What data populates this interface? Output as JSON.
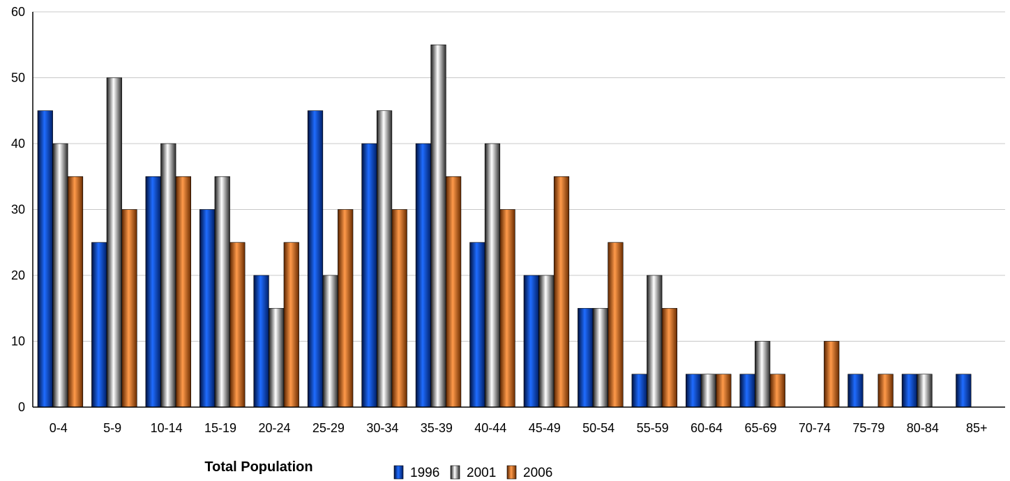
{
  "chart_data": {
    "type": "bar",
    "title": "Total Population",
    "xlabel": "",
    "ylabel": "",
    "categories": [
      "0-4",
      "5-9",
      "10-14",
      "15-19",
      "20-24",
      "25-29",
      "30-34",
      "35-39",
      "40-44",
      "45-49",
      "50-54",
      "55-59",
      "60-64",
      "65-69",
      "70-74",
      "75-79",
      "80-84",
      "85+"
    ],
    "series": [
      {
        "name": "1996",
        "color": "#0047c8",
        "values": [
          45,
          25,
          35,
          30,
          20,
          45,
          40,
          40,
          25,
          20,
          15,
          5,
          5,
          5,
          0,
          5,
          5,
          5
        ]
      },
      {
        "name": "2001",
        "color": "#9a9a9a",
        "values": [
          40,
          50,
          40,
          35,
          15,
          20,
          45,
          55,
          40,
          20,
          15,
          20,
          5,
          10,
          0,
          0,
          5,
          0
        ]
      },
      {
        "name": "2006",
        "color": "#e07428",
        "values": [
          35,
          30,
          35,
          25,
          25,
          30,
          30,
          35,
          30,
          35,
          25,
          15,
          5,
          5,
          10,
          5,
          0,
          0
        ]
      }
    ],
    "ylim": [
      0,
      60
    ],
    "yticks": [
      0,
      10,
      20,
      30,
      40,
      50,
      60
    ],
    "grid": true,
    "legend_position": "bottom-center"
  }
}
